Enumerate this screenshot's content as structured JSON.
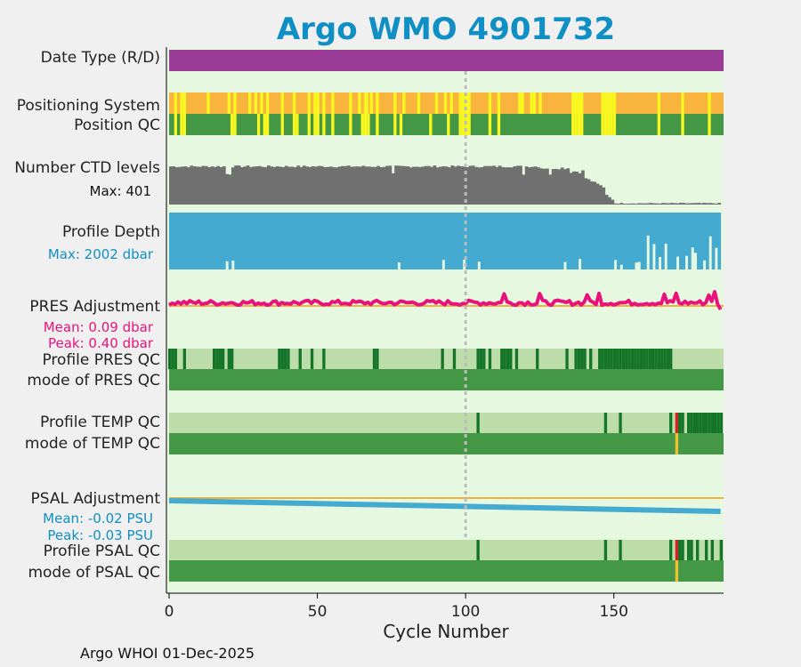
{
  "chart_data": {
    "type": "bar",
    "title": "Argo WMO 4901732",
    "xlabel": "Cycle Number",
    "xlim": [
      0,
      187
    ],
    "xticks": [
      0,
      50,
      100,
      150
    ],
    "vline_cycle": 100,
    "footer": "Argo WHOI 01-Dec-2025",
    "colors": {
      "title": "#0f8fc4",
      "panel_bg": "#e6f8e0",
      "date_type": "#9b3c99",
      "pos_system": "#f8b43c",
      "pos_system_alt": "#f8f820",
      "qc_good": "#449845",
      "qc_light": "#bcdcaa",
      "qc_dark": "#147528",
      "qc_bad": "#d82020",
      "qc_probable": "#f0c030",
      "ctd": "#707070",
      "depth": "#44aad0",
      "pres_adj": "#e8127c",
      "psal_adj": "#44aad0",
      "zero_line": "#f0b040",
      "vline": "#bbbbbb"
    },
    "panels": [
      {
        "label": "Date Type (R/D)",
        "type": "solid",
        "color": "#9b3c99"
      },
      {
        "label": "Positioning System",
        "type": "flags",
        "base_color": "#f8b43c",
        "flag_color": "#f8f820",
        "flag_cycles": [
          2,
          4,
          5,
          13,
          20,
          22,
          27,
          29,
          31,
          33,
          38,
          42,
          47,
          49,
          50,
          52,
          55,
          61,
          64,
          66,
          66.5,
          68,
          70,
          76,
          79,
          84,
          90,
          93,
          95,
          98,
          99,
          100,
          101,
          108,
          111,
          118,
          119,
          122,
          123,
          125,
          136,
          137,
          138,
          139,
          146,
          147,
          148,
          149,
          150,
          165,
          173,
          182
        ]
      },
      {
        "label": "Position QC",
        "type": "flags",
        "base_color": "#449845",
        "flag_color": "#f8f820",
        "flag_cycles": [
          2,
          4,
          5,
          21,
          22,
          30,
          32,
          33,
          38,
          42,
          43,
          47,
          49,
          50,
          52,
          55,
          61,
          65,
          66,
          67,
          70,
          76,
          78,
          88,
          94,
          98,
          99,
          100,
          101,
          108,
          111,
          136,
          137,
          138,
          139,
          146,
          147,
          148,
          149,
          150,
          165,
          173,
          182
        ]
      },
      {
        "label": "Number CTD levels",
        "sublabel": "Max: 401",
        "type": "bars_ctd",
        "max": 401
      },
      {
        "label": "Profile Depth",
        "sublabel": "Max: 2002 dbar",
        "type": "bars_depth",
        "max": 2002
      },
      {
        "label": "PRES Adjustment",
        "sublabel": "Mean: 0.09 dbar",
        "sublabel2": "Peak: 0.40 dbar",
        "type": "line_pres",
        "mean": 0.09,
        "peak": 0.4
      },
      {
        "label": "Profile PRES QC",
        "type": "flags",
        "base_color": "#bcdcaa",
        "flag_color": "#147528",
        "flag_cycles": [
          0,
          1,
          2,
          5,
          15,
          16,
          17,
          18,
          20,
          21,
          37,
          38,
          39,
          40,
          44,
          48,
          52,
          69,
          70,
          92,
          96,
          104,
          105,
          106,
          108,
          112,
          113,
          114,
          115,
          117,
          124,
          134,
          137,
          138,
          139,
          140,
          142,
          145,
          146,
          147,
          148,
          149,
          150,
          151,
          152,
          153,
          154,
          155,
          156,
          157,
          158,
          159,
          160,
          161,
          162,
          163,
          164,
          165,
          166,
          167,
          168,
          169
        ]
      },
      {
        "label": "mode of PRES QC",
        "type": "solid",
        "color": "#449845"
      },
      {
        "label": "Profile TEMP QC",
        "type": "flags",
        "base_color": "#bcdcaa",
        "flag_color": "#147528",
        "flag_cycles": [
          104,
          147,
          152,
          169,
          172,
          173,
          175,
          176,
          177,
          178,
          179,
          180,
          181,
          182,
          183,
          184,
          185,
          186
        ],
        "red_cycles": [
          171
        ]
      },
      {
        "label": "mode of TEMP QC",
        "type": "flags",
        "base_color": "#449845",
        "flag_color": "#f0c030",
        "flag_cycles": [
          171
        ]
      },
      {
        "label": "PSAL Adjustment",
        "sublabel": "Mean: -0.02 PSU",
        "sublabel2": "Peak: -0.03 PSU",
        "type": "line_psal",
        "mean": -0.02,
        "peak": -0.03
      },
      {
        "label": "Profile PSAL QC",
        "type": "flags",
        "base_color": "#bcdcaa",
        "flag_color": "#147528",
        "flag_cycles": [
          104,
          147,
          152,
          169,
          172,
          173,
          175,
          176,
          178,
          181,
          183,
          186
        ],
        "red_cycles": [
          171
        ]
      },
      {
        "label": "mode of PSAL QC",
        "type": "flags",
        "base_color": "#449845",
        "flag_color": "#f0c030",
        "flag_cycles": [
          171
        ]
      }
    ]
  }
}
